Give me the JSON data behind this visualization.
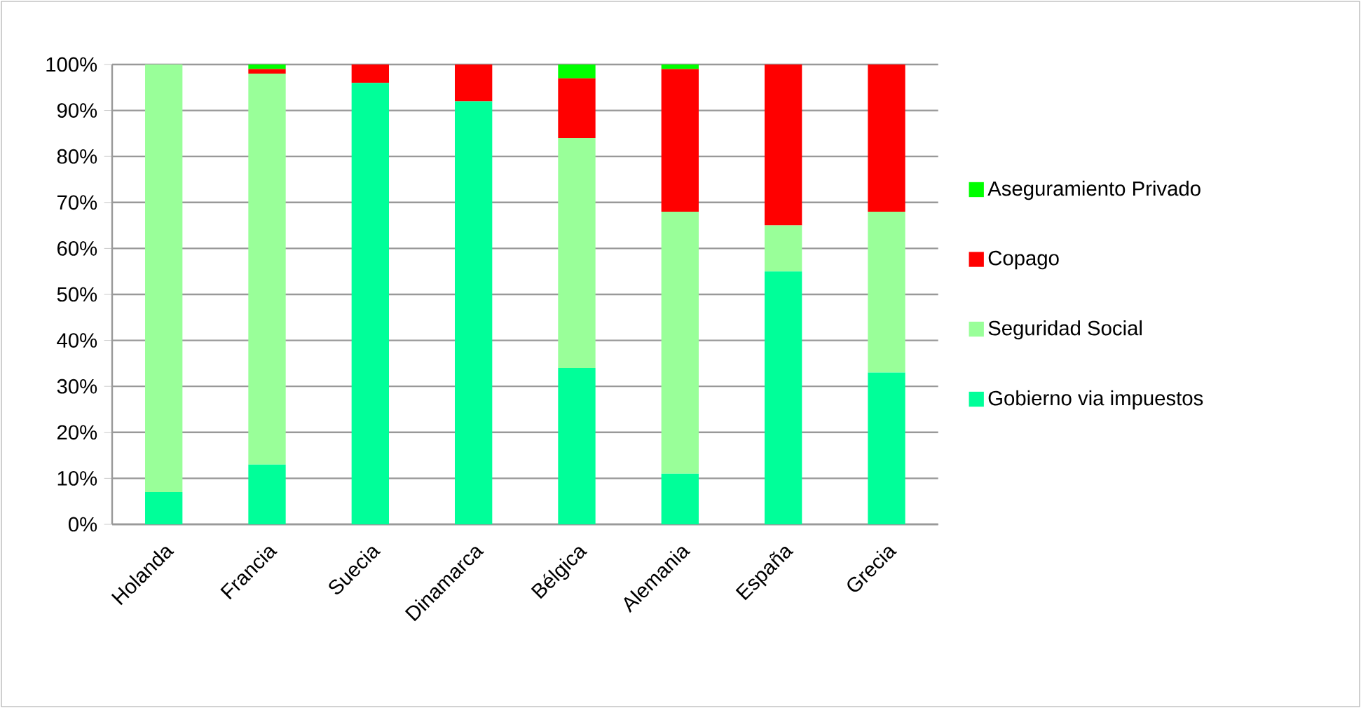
{
  "chart_data": {
    "type": "bar",
    "stacked": true,
    "categories": [
      "Holanda",
      "Francia",
      "Suecia",
      "Dinamarca",
      "Bélgica",
      "Alemania",
      "España",
      "Grecia"
    ],
    "series": [
      {
        "name": "Gobierno via impuestos",
        "color": "#00ff99",
        "values": [
          7,
          13,
          96,
          92,
          34,
          11,
          55,
          33
        ]
      },
      {
        "name": "Seguridad Social",
        "color": "#99ff99",
        "values": [
          93,
          85,
          0,
          0,
          50,
          57,
          10,
          35
        ]
      },
      {
        "name": "Copago",
        "color": "#ff0000",
        "values": [
          0,
          1,
          4,
          8,
          13,
          31,
          35,
          32
        ]
      },
      {
        "name": "Aseguramiento Privado",
        "color": "#00ff00",
        "values": [
          0,
          1,
          0,
          0,
          3,
          1,
          0,
          0
        ]
      }
    ],
    "ylim": [
      0,
      100
    ],
    "yticks": [
      {
        "value": 0,
        "label": "0%"
      },
      {
        "value": 10,
        "label": "10%"
      },
      {
        "value": 20,
        "label": "20%"
      },
      {
        "value": 30,
        "label": "30%"
      },
      {
        "value": 40,
        "label": "40%"
      },
      {
        "value": 50,
        "label": "50%"
      },
      {
        "value": 60,
        "label": "60%"
      },
      {
        "value": 70,
        "label": "70%"
      },
      {
        "value": 80,
        "label": "80%"
      },
      {
        "value": 90,
        "label": "90%"
      },
      {
        "value": 100,
        "label": "100%"
      }
    ],
    "grid": "y",
    "legend": "right"
  }
}
